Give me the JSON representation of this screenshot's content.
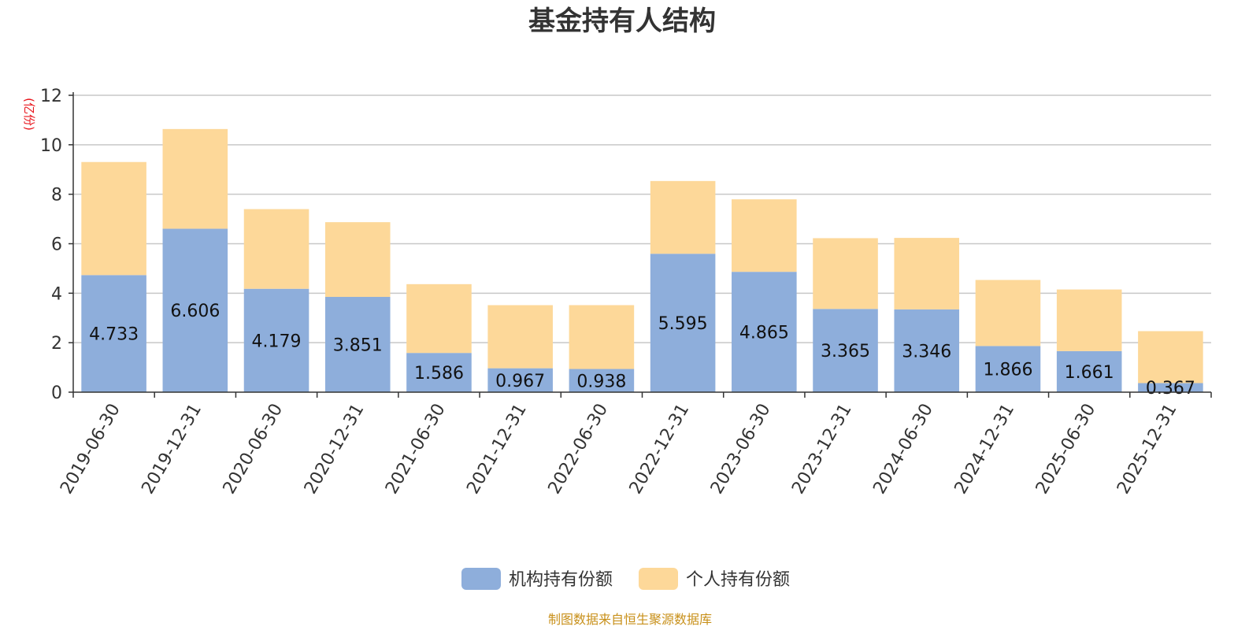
{
  "chart_data": {
    "type": "bar",
    "stacked": true,
    "title": "基金持有人结构",
    "unit_label": "(亿份)",
    "ylim": [
      0,
      12
    ],
    "yticks": [
      0,
      2,
      4,
      6,
      8,
      10,
      12
    ],
    "grid": true,
    "categories": [
      "2019-06-30",
      "2019-12-31",
      "2020-06-30",
      "2020-12-31",
      "2021-06-30",
      "2021-12-31",
      "2022-06-30",
      "2022-12-31",
      "2023-06-30",
      "2023-12-31",
      "2024-06-30",
      "2024-12-31",
      "2025-06-30",
      "2025-12-31"
    ],
    "series": [
      {
        "name": "机构持有份额",
        "color": "#8eaedb",
        "values": [
          4.733,
          6.606,
          4.179,
          3.851,
          1.586,
          0.967,
          0.938,
          5.595,
          4.865,
          3.365,
          3.346,
          1.866,
          1.661,
          0.367
        ],
        "labels": [
          "4.733",
          "6.606",
          "4.179",
          "3.851",
          "1.586",
          "0.967",
          "0.938",
          "5.595",
          "4.865",
          "3.365",
          "3.346",
          "1.866",
          "1.661",
          "0.367"
        ]
      },
      {
        "name": "个人持有份额",
        "color": "#fdd899",
        "values": [
          4.57,
          4.03,
          3.22,
          3.02,
          2.78,
          2.55,
          2.58,
          2.94,
          2.93,
          2.86,
          2.89,
          2.67,
          2.49,
          2.1
        ]
      }
    ],
    "legend_position": "bottom-center",
    "source_note": "制图数据来自恒生聚源数据库"
  }
}
